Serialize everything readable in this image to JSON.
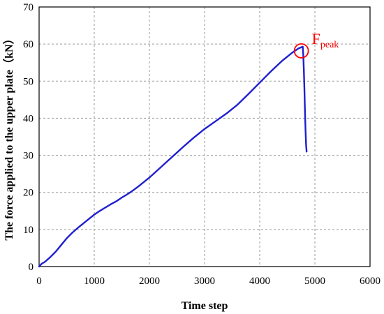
{
  "chart_data": {
    "type": "line",
    "xlabel": "Time step",
    "ylabel": "The force applied to the upper plate（kN）",
    "xlim": [
      0,
      6000
    ],
    "ylim": [
      0,
      70
    ],
    "xticks": [
      "0",
      "1000",
      "2000",
      "3000",
      "4000",
      "5000",
      "6000"
    ],
    "yticks": [
      "0",
      "10",
      "20",
      "30",
      "40",
      "50",
      "60",
      "70"
    ],
    "grid": true,
    "legend": "none",
    "series": [
      {
        "color": "#1f1fd0",
        "x": [
          0,
          50,
          100,
          200,
          300,
          400,
          500,
          600,
          700,
          800,
          900,
          1000,
          1100,
          1200,
          1300,
          1400,
          1500,
          1600,
          1700,
          1800,
          1900,
          2000,
          2200,
          2400,
          2600,
          2800,
          3000,
          3200,
          3400,
          3600,
          3800,
          4000,
          4200,
          4400,
          4600,
          4700,
          4780,
          4790,
          4800,
          4810,
          4820,
          4830,
          4840,
          4850
        ],
        "y": [
          0,
          0.8,
          1.2,
          2.5,
          4,
          5.8,
          7.6,
          9.1,
          10.4,
          11.6,
          12.8,
          14,
          15,
          15.9,
          16.8,
          17.6,
          18.6,
          19.5,
          20.5,
          21.6,
          22.8,
          24,
          26.7,
          29.4,
          32.1,
          34.7,
          37.1,
          39.2,
          41.3,
          43.7,
          46.6,
          49.6,
          52.6,
          55.4,
          57.8,
          58.8,
          59.3,
          57,
          53,
          48,
          42,
          37,
          33,
          31
        ]
      }
    ],
    "annotations": [
      {
        "text": "F",
        "subscript": "peak",
        "color": "#ff0000",
        "x": 4780,
        "y": 59.3
      }
    ]
  }
}
